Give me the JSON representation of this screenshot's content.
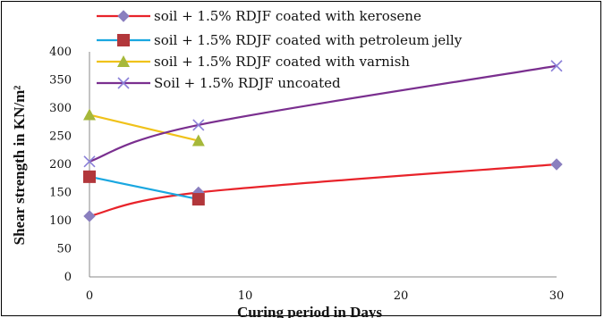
{
  "chart_data": {
    "type": "line",
    "xlabel": "Curing period in Days",
    "ylabel": "Shear strength in KN/m²",
    "xlim": [
      0,
      30
    ],
    "ylim": [
      0,
      400
    ],
    "x_ticks": [
      "0",
      "10",
      "20",
      "30"
    ],
    "y_ticks": [
      "0",
      "50",
      "100",
      "150",
      "200",
      "250",
      "300",
      "350",
      "400"
    ],
    "grid": false,
    "legend_position": "top",
    "series": [
      {
        "name": "soil + 1.5% RDJF coated with kerosene",
        "color": "#e8232a",
        "marker": "diamond",
        "marker_color": "#8a7fbf",
        "x": [
          0,
          7,
          30
        ],
        "y": [
          108,
          150,
          200
        ]
      },
      {
        "name": "soil + 1.5% RDJF coated with petroleum jelly",
        "color": "#1aa7e0",
        "marker": "square",
        "marker_color": "#b2373b",
        "x": [
          0,
          7
        ],
        "y": [
          178,
          138
        ]
      },
      {
        "name": "soil + 1.5% RDJF coated with varnish",
        "color": "#f0c21a",
        "marker": "triangle",
        "marker_color": "#a6b83a",
        "x": [
          0,
          7
        ],
        "y": [
          288,
          242
        ]
      },
      {
        "name": "Soil + 1.5% RDJF uncoated",
        "color": "#7a2f8f",
        "marker": "x",
        "marker_color": "#8a7fd8",
        "x": [
          0,
          7,
          30
        ],
        "y": [
          205,
          270,
          375
        ]
      }
    ]
  }
}
